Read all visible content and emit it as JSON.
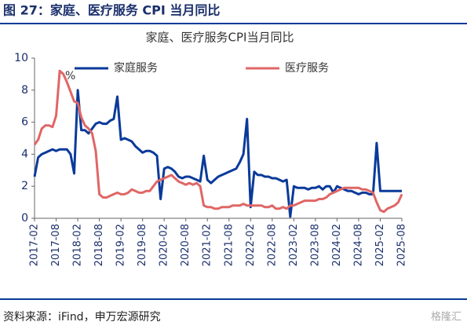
{
  "header": "图 27：家庭、医疗服务 CPI 当月同比",
  "chart_data": {
    "type": "line",
    "title": "家庭、医疗服务CPI当月同比",
    "categories": [
      "2017-02",
      null,
      null,
      null,
      null,
      null,
      "2017-08",
      null,
      null,
      null,
      null,
      null,
      "2018-02",
      null,
      null,
      null,
      null,
      null,
      "2018-08",
      null,
      null,
      null,
      null,
      null,
      "2019-02",
      null,
      null,
      null,
      null,
      null,
      "2019-08",
      null,
      null,
      null,
      null,
      null,
      "2020-02",
      null,
      null,
      null,
      null,
      null,
      "2020-08",
      null,
      null,
      null,
      null,
      null,
      "2021-02",
      null,
      null,
      null,
      null,
      null,
      "2021-08",
      null,
      null,
      null,
      null,
      null,
      "2022-02",
      null,
      null,
      null,
      null,
      null,
      "2022-08",
      null,
      null,
      null,
      null,
      null,
      "2023-02",
      null,
      null,
      null,
      null,
      null,
      "2023-08",
      null,
      null,
      null,
      null,
      null,
      "2024-02",
      null,
      null,
      null,
      null,
      null,
      "2024-08",
      null,
      null,
      null,
      null,
      null,
      "2025-02",
      null,
      null,
      null,
      null,
      null,
      "2025-08"
    ],
    "series": [
      {
        "name": "家庭服务",
        "color": "#0a3a9a",
        "values": [
          2.6,
          3.8,
          4.0,
          4.1,
          4.2,
          4.3,
          4.2,
          4.3,
          4.3,
          4.3,
          4.0,
          2.8,
          8.0,
          5.5,
          5.5,
          5.3,
          5.6,
          5.9,
          6.0,
          5.9,
          5.9,
          6.1,
          6.2,
          7.6,
          4.9,
          5.0,
          4.9,
          4.8,
          4.5,
          4.3,
          4.1,
          4.2,
          4.2,
          4.1,
          3.9,
          1.2,
          3.1,
          3.2,
          3.1,
          2.9,
          2.6,
          2.5,
          2.6,
          2.6,
          2.5,
          2.4,
          2.3,
          3.9,
          2.4,
          2.2,
          2.4,
          2.6,
          2.7,
          2.8,
          2.9,
          3.0,
          3.1,
          3.5,
          4.0,
          6.2,
          0.7,
          2.9,
          2.7,
          2.7,
          2.6,
          2.6,
          2.5,
          2.5,
          2.4,
          2.3,
          2.4,
          0.1,
          2.0,
          1.9,
          1.9,
          1.9,
          1.8,
          1.9,
          1.9,
          2.0,
          1.8,
          2.0,
          2.0,
          1.6,
          2.0,
          1.9,
          1.8,
          1.7,
          1.7,
          1.6,
          1.5,
          1.6,
          1.6,
          1.5,
          1.5,
          4.7,
          1.7,
          1.7,
          1.7,
          1.7,
          1.7,
          1.7,
          1.7
        ]
      },
      {
        "name": "医疗服务",
        "color": "#e06666",
        "values": [
          4.6,
          4.9,
          5.6,
          5.8,
          5.8,
          5.7,
          6.4,
          9.2,
          9.0,
          8.5,
          7.9,
          7.3,
          7.2,
          6.3,
          5.8,
          5.6,
          5.3,
          4.2,
          1.5,
          1.3,
          1.3,
          1.4,
          1.5,
          1.6,
          1.5,
          1.5,
          1.6,
          1.8,
          1.7,
          1.6,
          1.6,
          1.7,
          1.7,
          2.0,
          2.3,
          2.4,
          2.5,
          2.6,
          2.7,
          2.5,
          2.3,
          2.2,
          2.1,
          2.2,
          2.1,
          2.2,
          2.0,
          0.8,
          0.7,
          0.7,
          0.6,
          0.6,
          0.7,
          0.7,
          0.7,
          0.8,
          0.8,
          0.8,
          0.9,
          0.8,
          0.8,
          0.8,
          0.8,
          0.8,
          0.7,
          0.7,
          0.8,
          0.6,
          0.6,
          0.7,
          0.6,
          0.8,
          0.8,
          0.9,
          1.0,
          1.1,
          1.1,
          1.1,
          1.1,
          1.2,
          1.2,
          1.3,
          1.5,
          1.6,
          1.7,
          1.8,
          1.9,
          1.9,
          1.9,
          1.9,
          1.9,
          1.8,
          1.8,
          1.7,
          1.6,
          1.0,
          0.5,
          0.4,
          0.6,
          0.7,
          0.8,
          1.0,
          1.5
        ]
      }
    ],
    "annotation": "%",
    "ylim": [
      0,
      10
    ],
    "yticks": [
      0,
      2,
      4,
      6,
      8,
      10
    ],
    "legend": "top"
  },
  "source": "资料来源：iFind，申万宏源研究",
  "watermark": "格隆汇"
}
